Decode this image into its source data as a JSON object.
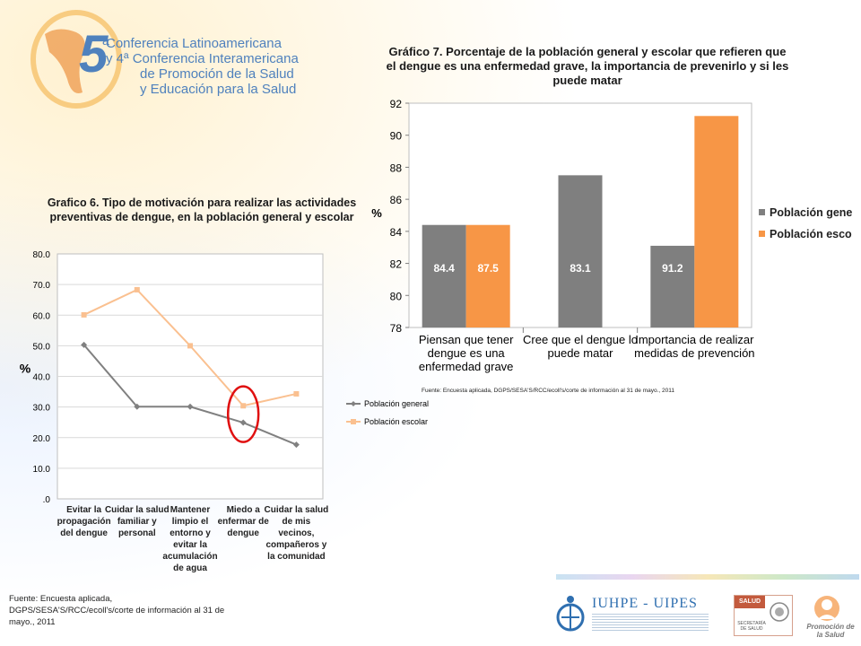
{
  "conference": {
    "lines": [
      "Conferencia Latinoamericana",
      "y 4ª Conferencia Interamericana",
      "de Promoción de la Salud",
      "y Educación para la Salud"
    ],
    "logo_number": "5",
    "logo_sup": "a"
  },
  "colors": {
    "general": "#7f7f7f",
    "escolar": "#f79646",
    "line_general": "#808080",
    "line_escolar": "#fac090",
    "highlight_circle": "#e01010",
    "conference_blue": "#4f81bd"
  },
  "chart_data": [
    {
      "type": "line",
      "title": "Grafico 6. Tipo de motivación para realizar las actividades preventivas de dengue, en la población general y escolar",
      "ylabel": "%",
      "xlabel": "",
      "ylim": [
        0,
        80
      ],
      "yticks": [
        "80.0",
        "70.0",
        "60.0",
        "50.0",
        "40.0",
        "30.0",
        "20.0",
        "10.0",
        ".0"
      ],
      "categories": [
        "Evitar la propagación del dengue",
        "Cuidar la salud familiar y personal",
        "Mantener limpio el entorno y evitar la acumulación de agua",
        "Miedo a enfermar de dengue",
        "Cuidar la salud de mis vecinos, compañeros y la comunidad"
      ],
      "series": [
        {
          "name": "Población general",
          "values": [
            50.3,
            30.1,
            30.1,
            24.9,
            17.7
          ]
        },
        {
          "name": "Población escolar",
          "values": [
            60.1,
            68.3,
            50.0,
            30.4,
            34.3
          ]
        }
      ],
      "legend": "right",
      "grid": true,
      "highlight": "Miedo a enfermar de dengue"
    },
    {
      "type": "bar",
      "title": "Gráfico 7. Porcentaje de la población general y escolar que refieren que el dengue es una enfermedad grave, la importancia de prevenirlo y si les puede matar",
      "ylabel": "%",
      "xlabel": "",
      "ylim": [
        78,
        92
      ],
      "yticks": [
        "92",
        "90",
        "88",
        "86",
        "84",
        "82",
        "80",
        "78"
      ],
      "categories": [
        "Piensan que tener dengue es una enfermedad grave",
        "Cree que el dengue lo puede matar",
        "Importancia de realizar medidas de prevención"
      ],
      "series": [
        {
          "name": "Población general",
          "values": [
            84.4,
            87.5,
            83.1
          ]
        },
        {
          "name": "Población escolar",
          "values": [
            84.4,
            null,
            91.2
          ]
        }
      ],
      "data_labels": [
        "84.4",
        "87.5",
        "83.1",
        "91.2"
      ],
      "legend": "right",
      "grid": false,
      "source": "Fuente: Encuesta aplicada, DGPS/SESA'S/RCC/ecoll's/corte de información al 31 de mayo., 2011"
    }
  ],
  "chart6_category_lines": [
    [
      "Evitar la",
      "propagación",
      "del dengue"
    ],
    [
      "Cuidar la salud",
      "familiar y",
      "personal"
    ],
    [
      "Mantener",
      "limpio el",
      "entorno y",
      "evitar la",
      "acumulación",
      "de agua"
    ],
    [
      "Miedo a",
      "enfermar de",
      "dengue"
    ],
    [
      "Cuidar la salud",
      "de mis",
      "vecinos,",
      "compañeros y",
      "la comunidad"
    ]
  ],
  "chart7_category_lines": [
    [
      "Piensan que tener",
      "dengue es una",
      "enfermedad grave"
    ],
    [
      "Cree que el dengue lo",
      "puede matar"
    ],
    [
      "Importancia de realizar",
      "medidas de prevención"
    ]
  ],
  "footer": {
    "source": "Fuente: Encuesta aplicada, DGPS/SESA'S/RCC/ecoll's/corte de información al 31 de mayo., 2011",
    "iuhpe": "IUHPE - UIPES",
    "salud": "SALUD",
    "salud_sub": "SECRETARÍA DE SALUD",
    "promo": "Promoción de la Salud"
  }
}
